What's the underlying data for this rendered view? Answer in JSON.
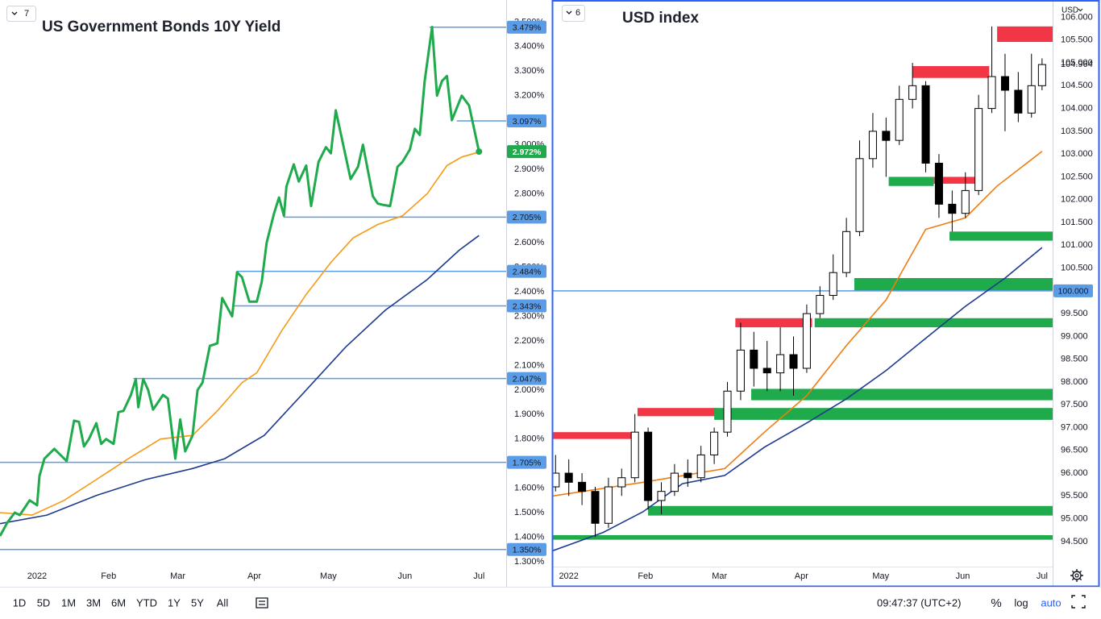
{
  "panes": [
    "7",
    "6"
  ],
  "currency": "USD",
  "toolbar": {
    "ranges": [
      "1D",
      "5D",
      "1M",
      "3M",
      "6M",
      "YTD",
      "1Y",
      "5Y",
      "All"
    ],
    "time": "09:47:37 (UTC+2)",
    "percent": "%",
    "log": "log",
    "auto": "auto"
  },
  "chart_data": [
    {
      "type": "line",
      "title": "US Government Bonds 10Y Yield",
      "color": "#1faa4c",
      "grid": false,
      "x": [
        -12,
        -9,
        -6,
        -4,
        0,
        3,
        4,
        6,
        10,
        12,
        15,
        18,
        20,
        22,
        24,
        27,
        29,
        31,
        34,
        36,
        38,
        41,
        43,
        44,
        46,
        48,
        50,
        52,
        54,
        56,
        59,
        61,
        63,
        66,
        68,
        70,
        73,
        76,
        78,
        82,
        84,
        86,
        89,
        92,
        94,
        96,
        99,
        101,
        103,
        104,
        107,
        109,
        112,
        114,
        117,
        120,
        122,
        124,
        127,
        130,
        133,
        135,
        139,
        141,
        143,
        146,
        149,
        151,
        154,
        156,
        158,
        160,
        163,
        165,
        167,
        169,
        171,
        175,
        178,
        182
      ],
      "values": [
        1.405,
        1.46,
        1.5,
        1.49,
        1.55,
        1.53,
        1.65,
        1.72,
        1.76,
        1.74,
        1.71,
        1.875,
        1.87,
        1.77,
        1.8,
        1.865,
        1.78,
        1.8,
        1.78,
        1.91,
        1.915,
        1.98,
        2.045,
        1.93,
        2.045,
        2.0,
        1.92,
        1.95,
        1.98,
        1.965,
        1.72,
        1.88,
        1.75,
        1.815,
        2.0,
        2.03,
        2.18,
        2.19,
        2.375,
        2.3,
        2.48,
        2.46,
        2.36,
        2.36,
        2.44,
        2.6,
        2.72,
        2.785,
        2.71,
        2.83,
        2.92,
        2.85,
        2.915,
        2.75,
        2.93,
        2.99,
        2.965,
        3.14,
        3.0,
        2.86,
        2.91,
        3.0,
        2.79,
        2.76,
        2.755,
        2.75,
        2.91,
        2.93,
        2.98,
        3.065,
        3.04,
        3.26,
        3.48,
        3.2,
        3.26,
        3.28,
        3.1,
        3.2,
        3.16,
        2.972
      ],
      "overlays": [
        {
          "color": "#f59b16",
          "x": [
            -12,
            1,
            14,
            27,
            40,
            53,
            66,
            76,
            86,
            92,
            102,
            112,
            122,
            131,
            141,
            151,
            161,
            169,
            175,
            182
          ],
          "values": [
            1.5,
            1.49,
            1.55,
            1.635,
            1.72,
            1.8,
            1.815,
            1.915,
            2.03,
            2.07,
            2.24,
            2.39,
            2.52,
            2.62,
            2.675,
            2.71,
            2.8,
            2.915,
            2.95,
            2.97
          ]
        },
        {
          "color": "#1c3b8f",
          "x": [
            -12,
            7,
            27,
            47,
            66,
            79,
            95,
            112,
            128,
            144,
            161,
            174,
            182
          ],
          "values": [
            1.455,
            1.49,
            1.57,
            1.635,
            1.68,
            1.72,
            1.815,
            2.0,
            2.175,
            2.325,
            2.45,
            2.57,
            2.63
          ]
        }
      ],
      "levels": [
        {
          "value": 3.479,
          "label": "3.479%",
          "from": 162,
          "color": "#5b9ce6"
        },
        {
          "value": 3.097,
          "label": "3.097%",
          "from": 173,
          "color": "#5b9ce6"
        },
        {
          "value": 2.972,
          "label": "2.972%",
          "color": "#1faa4c"
        },
        {
          "value": 2.705,
          "label": "2.705%",
          "from": 103,
          "color": "#5b9ce6"
        },
        {
          "value": 2.484,
          "label": "2.484%",
          "from": 84,
          "color": "#5b9ce6"
        },
        {
          "value": 2.343,
          "label": "2.343%",
          "from": 83,
          "color": "#5b9ce6"
        },
        {
          "value": 2.047,
          "label": "2.047%",
          "from": 42,
          "color": "#5b9ce6"
        },
        {
          "value": 1.705,
          "label": "1.705%",
          "from": -12,
          "color": "#5b9ce6"
        },
        {
          "value": 1.35,
          "label": "1.350%",
          "from": -12,
          "color": "#5b9ce6"
        }
      ],
      "xlim": [
        -12,
        193
      ],
      "ylim": [
        1.28,
        3.59
      ],
      "xticks": [
        {
          "value": 3,
          "label": "2022"
        },
        {
          "value": 32,
          "label": "Feb"
        },
        {
          "value": 60,
          "label": "Mar"
        },
        {
          "value": 91,
          "label": "Apr"
        },
        {
          "value": 121,
          "label": "May"
        },
        {
          "value": 152,
          "label": "Jun"
        },
        {
          "value": 182,
          "label": "Jul"
        }
      ],
      "yticks": [
        {
          "value": 1.3,
          "label": "1.300%"
        },
        {
          "value": 1.4,
          "label": "1.400%"
        },
        {
          "value": 1.5,
          "label": "1.500%"
        },
        {
          "value": 1.6,
          "label": "1.600%"
        },
        {
          "value": 1.7,
          "label": "1.700%"
        },
        {
          "value": 1.8,
          "label": "1.800%"
        },
        {
          "value": 1.9,
          "label": "1.900%"
        },
        {
          "value": 2.0,
          "label": "2.000%"
        },
        {
          "value": 2.1,
          "label": "2.100%"
        },
        {
          "value": 2.2,
          "label": "2.200%"
        },
        {
          "value": 2.3,
          "label": "2.300%"
        },
        {
          "value": 2.4,
          "label": "2.400%"
        },
        {
          "value": 2.5,
          "label": "2.500%"
        },
        {
          "value": 2.6,
          "label": "2.600%"
        },
        {
          "value": 2.7,
          "label": "2.700%"
        },
        {
          "value": 2.8,
          "label": "2.800%"
        },
        {
          "value": 2.9,
          "label": "2.900%"
        },
        {
          "value": 3.0,
          "label": "3.000%"
        },
        {
          "value": 3.1,
          "label": "3.100%"
        },
        {
          "value": 3.2,
          "label": "3.200%"
        },
        {
          "value": 3.3,
          "label": "3.300%"
        },
        {
          "value": 3.4,
          "label": "3.400%"
        },
        {
          "value": 3.5,
          "label": "3.500%"
        }
      ]
    },
    {
      "type": "candlestick",
      "title": "USD index",
      "up_color": "#ffffff",
      "down_color": "#000000",
      "grid": false,
      "x": [
        -2,
        3,
        8,
        13,
        18,
        23,
        28,
        33,
        38,
        43,
        48,
        53,
        58,
        63,
        68,
        73,
        78,
        83,
        88,
        93,
        98,
        103,
        108,
        113,
        118,
        123,
        128,
        133,
        138,
        143,
        148,
        153,
        158,
        163,
        168,
        173,
        178,
        182
      ],
      "open": [
        95.7,
        96.0,
        95.8,
        95.6,
        94.9,
        95.7,
        95.9,
        96.9,
        95.4,
        95.6,
        96.0,
        95.9,
        96.4,
        96.9,
        97.8,
        98.7,
        98.3,
        98.2,
        98.6,
        98.3,
        99.5,
        99.9,
        100.4,
        101.3,
        102.9,
        103.5,
        103.3,
        104.2,
        104.5,
        102.8,
        101.9,
        101.7,
        102.2,
        104.0,
        104.7,
        104.4,
        103.9,
        104.5
      ],
      "high": [
        96.4,
        96.3,
        96.0,
        95.7,
        95.9,
        96.1,
        97.3,
        97.0,
        95.8,
        96.2,
        96.3,
        96.6,
        97.0,
        98.0,
        99.3,
        99.1,
        98.9,
        99.2,
        99.0,
        99.7,
        100.1,
        100.8,
        101.6,
        103.3,
        103.9,
        103.8,
        104.5,
        105.0,
        104.6,
        103.0,
        102.2,
        102.6,
        104.3,
        105.8,
        105.2,
        104.8,
        105.2,
        105.1
      ],
      "low": [
        95.6,
        95.5,
        95.3,
        94.6,
        94.8,
        95.5,
        95.8,
        95.2,
        95.1,
        95.5,
        95.7,
        95.8,
        96.2,
        96.8,
        97.6,
        97.9,
        97.8,
        97.8,
        97.7,
        98.2,
        99.4,
        99.8,
        100.3,
        101.2,
        102.7,
        102.5,
        103.2,
        104.0,
        102.6,
        101.6,
        101.3,
        101.6,
        102.1,
        103.9,
        103.5,
        103.7,
        103.8,
        104.4
      ],
      "close": [
        96.0,
        95.8,
        95.6,
        94.9,
        95.7,
        95.9,
        96.9,
        95.4,
        95.6,
        96.0,
        95.9,
        96.4,
        96.9,
        97.8,
        98.7,
        98.3,
        98.2,
        98.6,
        98.3,
        99.5,
        99.9,
        100.4,
        101.3,
        102.9,
        103.5,
        103.3,
        104.2,
        104.5,
        102.8,
        101.9,
        101.7,
        102.2,
        104.0,
        104.7,
        104.4,
        103.9,
        104.5,
        104.964
      ],
      "overlays": [
        {
          "color": "#f07c12",
          "x": [
            -3,
            31,
            62,
            77,
            93,
            108,
            123,
            138,
            153,
            165,
            182
          ],
          "values": [
            95.5,
            95.8,
            96.1,
            96.9,
            97.7,
            98.8,
            99.8,
            101.35,
            101.6,
            102.3,
            103.06
          ]
        },
        {
          "color": "#1c3b8f",
          "x": [
            -3,
            16,
            31,
            46,
            62,
            77,
            93,
            108,
            123,
            138,
            153,
            168,
            182
          ],
          "values": [
            94.3,
            94.7,
            95.15,
            95.77,
            95.95,
            96.57,
            97.1,
            97.63,
            98.25,
            98.96,
            99.66,
            100.28,
            100.95
          ]
        }
      ],
      "zones": [
        {
          "from": -3,
          "to": 29,
          "low": 96.75,
          "high": 96.9,
          "color": "#f23645"
        },
        {
          "from": 29,
          "to": 59,
          "low": 97.25,
          "high": 97.43,
          "color": "#f23645"
        },
        {
          "from": 66,
          "to": 95,
          "low": 99.2,
          "high": 99.4,
          "color": "#f23645"
        },
        {
          "from": 133,
          "to": 162,
          "low": 104.67,
          "high": 104.93,
          "color": "#f23645"
        },
        {
          "from": 165,
          "to": 186,
          "low": 105.46,
          "high": 105.8,
          "color": "#f23645"
        },
        {
          "from": 141,
          "to": 157,
          "low": 102.35,
          "high": 102.5,
          "color": "#f23645"
        },
        {
          "from": 124,
          "to": 141,
          "low": 102.3,
          "high": 102.5,
          "color": "#1faa4c"
        },
        {
          "from": 147,
          "to": 186,
          "low": 101.1,
          "high": 101.3,
          "color": "#1faa4c"
        },
        {
          "from": 111,
          "to": 186,
          "low": 100.0,
          "high": 100.28,
          "color": "#1faa4c"
        },
        {
          "from": 96,
          "to": 186,
          "low": 99.2,
          "high": 99.4,
          "color": "#1faa4c"
        },
        {
          "from": 72,
          "to": 186,
          "low": 97.6,
          "high": 97.85,
          "color": "#1faa4c"
        },
        {
          "from": 58,
          "to": 186,
          "low": 97.17,
          "high": 97.43,
          "color": "#1faa4c"
        },
        {
          "from": 33,
          "to": 186,
          "low": 95.07,
          "high": 95.28,
          "color": "#1faa4c"
        },
        {
          "from": -3,
          "to": 186,
          "low": 94.54,
          "high": 94.64,
          "color": "#1faa4c"
        }
      ],
      "levels": [
        {
          "value": 100,
          "label": "100.000",
          "from": -3,
          "color": "#5b9ce6"
        }
      ],
      "xlim": [
        -3,
        186
      ],
      "ylim": [
        93.95,
        106.38
      ],
      "xticks": [
        {
          "value": 3,
          "label": "2022"
        },
        {
          "value": 32,
          "label": "Feb"
        },
        {
          "value": 60,
          "label": "Mar"
        },
        {
          "value": 91,
          "label": "Apr"
        },
        {
          "value": 121,
          "label": "May"
        },
        {
          "value": 152,
          "label": "Jun"
        },
        {
          "value": 182,
          "label": "Jul"
        }
      ],
      "yticks": [
        {
          "value": 94.5,
          "label": "94.500"
        },
        {
          "value": 95,
          "label": "95.000"
        },
        {
          "value": 95.5,
          "label": "95.500"
        },
        {
          "value": 96,
          "label": "96.000"
        },
        {
          "value": 96.5,
          "label": "96.500"
        },
        {
          "value": 97,
          "label": "97.000"
        },
        {
          "value": 97.5,
          "label": "97.500"
        },
        {
          "value": 98,
          "label": "98.000"
        },
        {
          "value": 98.5,
          "label": "98.500"
        },
        {
          "value": 99,
          "label": "99.000"
        },
        {
          "value": 99.5,
          "label": "99.500"
        },
        {
          "value": 100,
          "label": "100.000"
        },
        {
          "value": 100.5,
          "label": "100.500"
        },
        {
          "value": 101,
          "label": "101.000"
        },
        {
          "value": 101.5,
          "label": "101.500"
        },
        {
          "value": 102,
          "label": "102.000"
        },
        {
          "value": 102.5,
          "label": "102.500"
        },
        {
          "value": 103,
          "label": "103.000"
        },
        {
          "value": 103.5,
          "label": "103.500"
        },
        {
          "value": 104,
          "label": "104.000"
        },
        {
          "value": 104.5,
          "label": "104.500"
        },
        {
          "value": 105,
          "label": "105.000"
        },
        {
          "value": 105.5,
          "label": "105.500"
        },
        {
          "value": 106,
          "label": "106.000"
        }
      ]
    }
  ]
}
